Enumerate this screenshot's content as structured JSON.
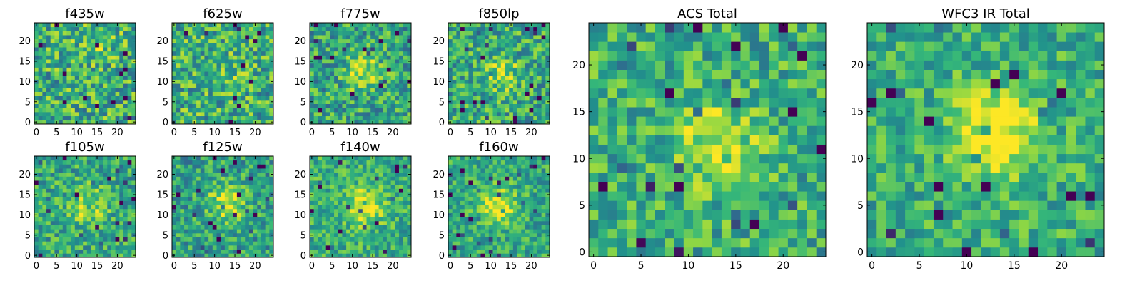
{
  "chart_data": {
    "type": "heatmap",
    "colormap": [
      "#440154",
      "#31688e",
      "#21918c",
      "#35b779",
      "#90d743",
      "#fde725"
    ],
    "panels": [
      {
        "id": "f435w",
        "title": "f435w",
        "grid_size": 25,
        "xlim": [
          0,
          24
        ],
        "ylim": [
          0,
          24
        ],
        "xticks": [
          0,
          5,
          10,
          15,
          20
        ],
        "yticks": [
          0,
          5,
          10,
          15,
          20
        ],
        "tick_labels_x": [
          "0",
          "5",
          "10",
          "15",
          "20"
        ],
        "tick_labels_y": [
          "0",
          "5",
          "10",
          "15",
          "20"
        ],
        "peak": [
          15,
          20
        ],
        "signal": 0.2,
        "noise": 0.5,
        "base": 0.55
      },
      {
        "id": "f625w",
        "title": "f625w",
        "grid_size": 25,
        "xlim": [
          0,
          24
        ],
        "ylim": [
          0,
          24
        ],
        "xticks": [
          0,
          5,
          10,
          15,
          20
        ],
        "yticks": [
          0,
          5,
          10,
          15,
          20
        ],
        "tick_labels_x": [
          "0",
          "5",
          "10",
          "15",
          "20"
        ],
        "tick_labels_y": [
          "0",
          "5",
          "10",
          "15",
          "20"
        ],
        "peak": [
          13,
          12
        ],
        "signal": 0.15,
        "noise": 0.5,
        "base": 0.55
      },
      {
        "id": "f775w",
        "title": "f775w",
        "grid_size": 25,
        "xlim": [
          0,
          24
        ],
        "ylim": [
          0,
          24
        ],
        "xticks": [
          0,
          5,
          10,
          15,
          20
        ],
        "yticks": [
          0,
          5,
          10,
          15,
          20
        ],
        "tick_labels_x": [
          "0",
          "5",
          "10",
          "15",
          "20"
        ],
        "tick_labels_y": [
          "0",
          "5",
          "10",
          "15",
          "20"
        ],
        "peak": [
          13,
          12
        ],
        "signal": 0.35,
        "noise": 0.45,
        "base": 0.5
      },
      {
        "id": "f850lp",
        "title": "f850lp",
        "grid_size": 25,
        "xlim": [
          0,
          24
        ],
        "ylim": [
          0,
          24
        ],
        "xticks": [
          0,
          5,
          10,
          15,
          20
        ],
        "yticks": [
          0,
          5,
          10,
          15,
          20
        ],
        "tick_labels_x": [
          "0",
          "5",
          "10",
          "15",
          "20"
        ],
        "tick_labels_y": [
          "0",
          "5",
          "10",
          "15",
          "20"
        ],
        "peak": [
          13,
          12
        ],
        "signal": 0.3,
        "noise": 0.45,
        "base": 0.52
      },
      {
        "id": "f105w",
        "title": "f105w",
        "grid_size": 25,
        "xlim": [
          0,
          24
        ],
        "ylim": [
          0,
          24
        ],
        "xticks": [
          0,
          5,
          10,
          15,
          20
        ],
        "yticks": [
          0,
          5,
          10,
          15,
          20
        ],
        "tick_labels_x": [
          "0",
          "5",
          "10",
          "15",
          "20"
        ],
        "tick_labels_y": [
          "0",
          "5",
          "10",
          "15",
          "20"
        ],
        "peak": [
          13,
          12
        ],
        "signal": 0.35,
        "noise": 0.4,
        "base": 0.52
      },
      {
        "id": "f125w",
        "title": "f125w",
        "grid_size": 25,
        "xlim": [
          0,
          24
        ],
        "ylim": [
          0,
          24
        ],
        "xticks": [
          0,
          5,
          10,
          15,
          20
        ],
        "yticks": [
          0,
          5,
          10,
          15,
          20
        ],
        "tick_labels_x": [
          "0",
          "5",
          "10",
          "15",
          "20"
        ],
        "tick_labels_y": [
          "0",
          "5",
          "10",
          "15",
          "20"
        ],
        "peak": [
          13,
          13
        ],
        "signal": 0.45,
        "noise": 0.4,
        "base": 0.48
      },
      {
        "id": "f140w",
        "title": "f140w",
        "grid_size": 25,
        "xlim": [
          0,
          24
        ],
        "ylim": [
          0,
          24
        ],
        "xticks": [
          0,
          5,
          10,
          15,
          20
        ],
        "yticks": [
          0,
          5,
          10,
          15,
          20
        ],
        "tick_labels_x": [
          "0",
          "5",
          "10",
          "15",
          "20"
        ],
        "tick_labels_y": [
          "0",
          "5",
          "10",
          "15",
          "20"
        ],
        "peak": [
          13,
          12
        ],
        "signal": 0.45,
        "noise": 0.35,
        "base": 0.55
      },
      {
        "id": "f160w",
        "title": "f160w",
        "grid_size": 25,
        "xlim": [
          0,
          24
        ],
        "ylim": [
          0,
          24
        ],
        "xticks": [
          0,
          5,
          10,
          15,
          20
        ],
        "yticks": [
          0,
          5,
          10,
          15,
          20
        ],
        "tick_labels_x": [
          "0",
          "5",
          "10",
          "15",
          "20"
        ],
        "tick_labels_y": [
          "0",
          "5",
          "10",
          "15",
          "20"
        ],
        "peak": [
          12,
          12
        ],
        "signal": 0.5,
        "noise": 0.35,
        "base": 0.52
      },
      {
        "id": "acs-total",
        "title": "ACS Total",
        "grid_size": 25,
        "xlim": [
          0,
          24
        ],
        "ylim": [
          0,
          24
        ],
        "xticks": [
          0,
          5,
          10,
          15,
          20
        ],
        "yticks": [
          0,
          5,
          10,
          15,
          20
        ],
        "tick_labels_x": [
          "0",
          "5",
          "10",
          "15",
          "20"
        ],
        "tick_labels_y": [
          "0",
          "5",
          "10",
          "15",
          "20"
        ],
        "peak": [
          13,
          12
        ],
        "signal": 0.4,
        "noise": 0.4,
        "base": 0.55
      },
      {
        "id": "wfc3-ir-total",
        "title": "WFC3 IR Total",
        "grid_size": 25,
        "xlim": [
          0,
          24
        ],
        "ylim": [
          0,
          24
        ],
        "xticks": [
          0,
          5,
          10,
          15,
          20
        ],
        "yticks": [
          0,
          5,
          10,
          15,
          20
        ],
        "tick_labels_x": [
          "0",
          "5",
          "10",
          "15",
          "20"
        ],
        "tick_labels_y": [
          "0",
          "5",
          "10",
          "15",
          "20"
        ],
        "peak": [
          13,
          13
        ],
        "signal": 0.5,
        "noise": 0.35,
        "base": 0.55
      }
    ]
  }
}
